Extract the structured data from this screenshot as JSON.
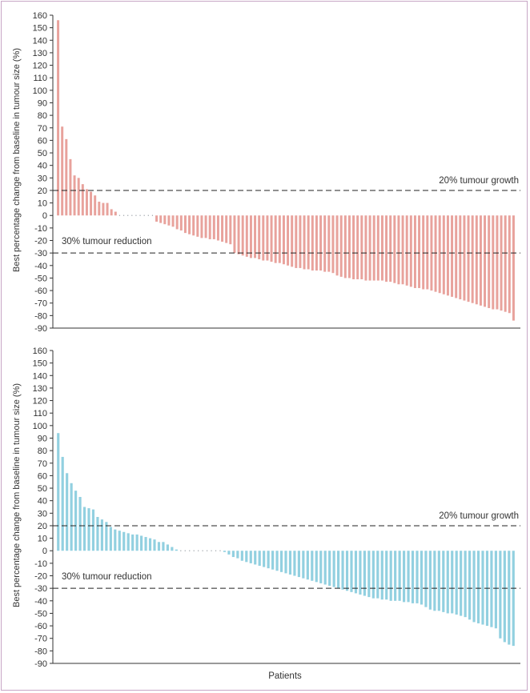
{
  "chart_data": [
    {
      "type": "bar",
      "ylabel": "Best percentage change from baseline in tumour size (%)",
      "xlabel": "",
      "ylim": [
        -90,
        160
      ],
      "yticks": [
        160,
        150,
        140,
        130,
        120,
        110,
        100,
        90,
        80,
        70,
        60,
        50,
        40,
        30,
        20,
        10,
        0,
        -10,
        -20,
        -30,
        -40,
        -50,
        -60,
        -70,
        -80,
        -90
      ],
      "color": "#e8a29c",
      "reference_lines": [
        {
          "value": 20,
          "label": "20% tumour growth"
        },
        {
          "value": -30,
          "label": "30% tumour reduction"
        }
      ],
      "values": [
        156,
        71,
        61,
        45,
        32,
        30,
        25,
        21,
        19,
        16,
        11,
        10,
        10,
        5,
        3,
        0,
        0,
        0,
        0,
        0,
        0,
        0,
        0,
        0,
        -5,
        -6,
        -7,
        -8,
        -9,
        -11,
        -12,
        -14,
        -15,
        -16,
        -17,
        -18,
        -18,
        -19,
        -19,
        -20,
        -21,
        -22,
        -23,
        -30,
        -31,
        -32,
        -33,
        -34,
        -34,
        -35,
        -36,
        -36,
        -37,
        -38,
        -38,
        -39,
        -40,
        -41,
        -42,
        -42,
        -43,
        -43,
        -44,
        -44,
        -44,
        -45,
        -45,
        -46,
        -48,
        -49,
        -50,
        -50,
        -51,
        -51,
        -51,
        -52,
        -52,
        -52,
        -52,
        -52,
        -53,
        -53,
        -54,
        -55,
        -55,
        -56,
        -57,
        -58,
        -58,
        -59,
        -59,
        -60,
        -61,
        -62,
        -63,
        -64,
        -65,
        -66,
        -67,
        -68,
        -69,
        -70,
        -71,
        -72,
        -73,
        -74,
        -75,
        -75,
        -76,
        -77,
        -78,
        -84
      ]
    },
    {
      "type": "bar",
      "ylabel": "Best percentage change from baseline in tumour size (%)",
      "xlabel": "Patients",
      "ylim": [
        -90,
        160
      ],
      "yticks": [
        160,
        150,
        140,
        130,
        120,
        110,
        100,
        90,
        80,
        70,
        60,
        50,
        40,
        30,
        20,
        10,
        0,
        -10,
        -20,
        -30,
        -40,
        -50,
        -60,
        -70,
        -80,
        -90
      ],
      "color": "#92d0e0",
      "reference_lines": [
        {
          "value": 20,
          "label": "20% tumour growth"
        },
        {
          "value": -30,
          "label": "30% tumour reduction"
        }
      ],
      "values": [
        94,
        75,
        62,
        54,
        48,
        43,
        35,
        34,
        33,
        27,
        25,
        23,
        19,
        17,
        16,
        15,
        14,
        13,
        13,
        12,
        11,
        10,
        9,
        7,
        7,
        5,
        3,
        1,
        0,
        0,
        0,
        0,
        0,
        0,
        0,
        0,
        0,
        0,
        -1,
        -3,
        -5,
        -6,
        -8,
        -9,
        -10,
        -11,
        -12,
        -13,
        -14,
        -15,
        -16,
        -17,
        -18,
        -19,
        -20,
        -21,
        -22,
        -23,
        -24,
        -25,
        -26,
        -27,
        -28,
        -29,
        -30,
        -31,
        -32,
        -33,
        -34,
        -35,
        -36,
        -37,
        -38,
        -38,
        -39,
        -39,
        -40,
        -40,
        -40,
        -41,
        -41,
        -42,
        -42,
        -43,
        -45,
        -47,
        -48,
        -48,
        -49,
        -50,
        -50,
        -51,
        -52,
        -53,
        -55,
        -57,
        -58,
        -59,
        -60,
        -61,
        -62,
        -70,
        -73,
        -75,
        -76
      ]
    }
  ]
}
